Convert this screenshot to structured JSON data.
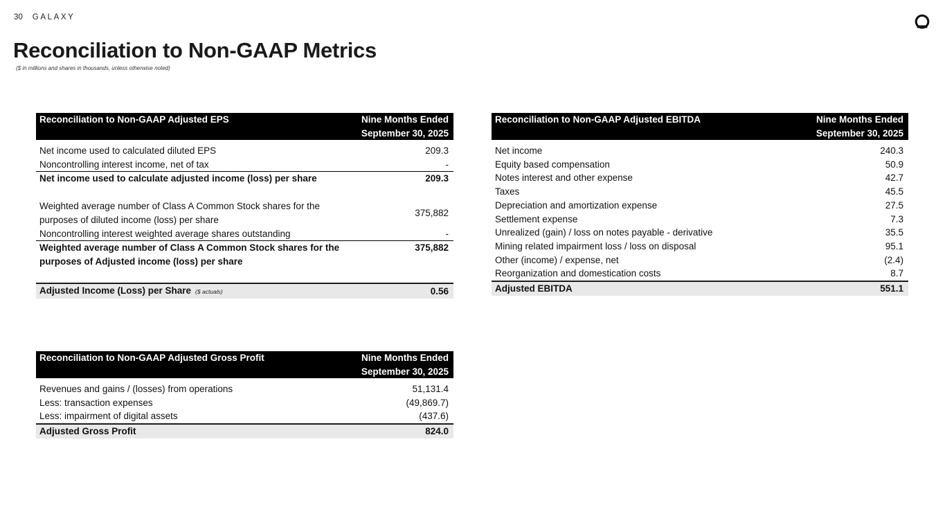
{
  "page": {
    "number": "30",
    "brand": "GALAXY",
    "title": "Reconciliation to Non-GAAP Metrics",
    "subtitle": "($ in millions and shares in thousands, unless otherwise noted)",
    "logo_icon": "galaxy-circle-logo"
  },
  "colors": {
    "header_bg": "#000000",
    "header_text": "#ffffff",
    "total_row_bg": "#e8e8e8",
    "body_text": "#111111"
  },
  "tables": {
    "eps": {
      "title": "Reconciliation to Non-GAAP Adjusted EPS",
      "period_line1": "Nine Months Ended",
      "period_line2": "September 30, 2025",
      "rows": [
        {
          "label": "Net income used to calculated diluted EPS",
          "value": "209.3",
          "style": "normal"
        },
        {
          "label": "Noncontrolling interest income, net of tax",
          "value": "-",
          "style": "normal"
        },
        {
          "label": "Net income used to calculate adjusted income (loss) per share",
          "value": "209.3",
          "style": "subtotal"
        },
        {
          "style": "spacer"
        },
        {
          "label": "Weighted average number of Class A Common Stock shares for the purposes of diluted income (loss) per share",
          "value": "375,882",
          "style": "normal"
        },
        {
          "label": "Noncontrolling interest weighted average shares outstanding",
          "value": "-",
          "style": "normal"
        },
        {
          "label": "Weighted average number of Class A Common Stock shares for the purposes of Adjusted income (loss) per share",
          "value": "375,882",
          "style": "subtotal vtop"
        },
        {
          "style": "spacer"
        },
        {
          "label": "Adjusted Income (Loss) per Share",
          "label_note": "($ actuals)",
          "value": "0.56",
          "style": "total"
        }
      ]
    },
    "ebitda": {
      "title": "Reconciliation to Non-GAAP Adjusted EBITDA",
      "period_line1": "Nine Months Ended",
      "period_line2": "September 30, 2025",
      "rows": [
        {
          "label": "Net income",
          "value": "240.3",
          "style": "normal"
        },
        {
          "label": "Equity based compensation",
          "value": "50.9",
          "style": "normal"
        },
        {
          "label": "Notes interest and other expense",
          "value": "42.7",
          "style": "normal"
        },
        {
          "label": "Taxes",
          "value": "45.5",
          "style": "normal"
        },
        {
          "label": "Depreciation and amortization expense",
          "value": "27.5",
          "style": "normal"
        },
        {
          "label": "Settlement expense",
          "value": "7.3",
          "style": "normal"
        },
        {
          "label": "Unrealized (gain) / loss on notes payable - derivative",
          "value": "35.5",
          "style": "normal"
        },
        {
          "label": "Mining related impairment loss / loss on disposal",
          "value": "95.1",
          "style": "normal"
        },
        {
          "label": "Other (income) / expense, net",
          "value": "(2.4)",
          "style": "normal"
        },
        {
          "label": "Reorganization and domestication costs",
          "value": "8.7",
          "style": "normal"
        },
        {
          "label": "Adjusted EBITDA",
          "value": "551.1",
          "style": "total"
        }
      ]
    },
    "gross_profit": {
      "title": "Reconciliation to Non-GAAP Adjusted Gross Profit",
      "period_line1": "Nine Months Ended",
      "period_line2": "September 30, 2025",
      "rows": [
        {
          "label": "Revenues and gains / (losses) from operations",
          "value": "51,131.4",
          "style": "normal"
        },
        {
          "label": "Less: transaction expenses",
          "value": "(49,869.7)",
          "style": "normal"
        },
        {
          "label": "Less: impairment of digital assets",
          "value": "(437.6)",
          "style": "normal"
        },
        {
          "label": "Adjusted Gross Profit",
          "value": "824.0",
          "style": "total"
        }
      ]
    }
  }
}
